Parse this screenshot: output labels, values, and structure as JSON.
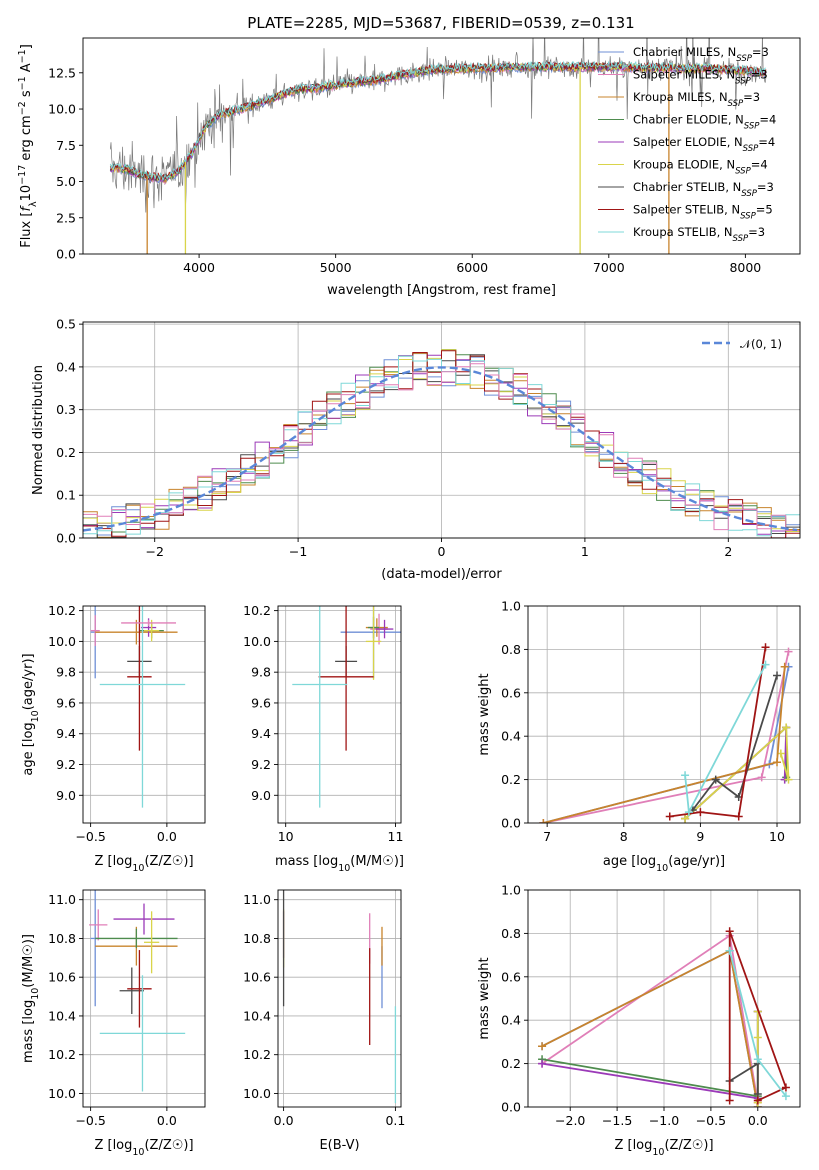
{
  "title": "PLATE=2285, MJD=53687, FIBERID=0539, z=0.131",
  "colors": [
    "#6f8fd6",
    "#c8842d",
    "#4e8c4e",
    "#9b3ab8",
    "#d9d44a",
    "#4a4a4a",
    "#a01515",
    "#7fd8d8",
    "#e07fb8"
  ],
  "chart_data": [
    {
      "id": "spectrum",
      "type": "line",
      "xlabel": "wavelength [Angstrom, rest frame]",
      "ylabel": "Flux [fλ10⁻¹⁷ erg cm⁻² s⁻¹ A⁻¹]",
      "xlim": [
        3150,
        8400
      ],
      "ylim": [
        0,
        14.9
      ],
      "xticks": [
        "4000",
        "5000",
        "6000",
        "7000",
        "8000"
      ],
      "yticks": [
        "0.0",
        "2.5",
        "5.0",
        "7.5",
        "10.0",
        "12.5"
      ],
      "grid": false,
      "legend_position": "top-right",
      "series": [
        {
          "name": "Chabrier MILES, N_SSP=3",
          "color": "#6f8fd6"
        },
        {
          "name": "Salpeter MILES, N_SSP=3",
          "color": "#e07fb8"
        },
        {
          "name": "Kroupa MILES, N_SSP=3",
          "color": "#c8842d"
        },
        {
          "name": "Chabrier ELODIE, N_SSP=4",
          "color": "#4e8c4e"
        },
        {
          "name": "Salpeter ELODIE, N_SSP=4",
          "color": "#9b3ab8"
        },
        {
          "name": "Kroupa ELODIE, N_SSP=4",
          "color": "#d9d44a"
        },
        {
          "name": "Chabrier STELIB, N_SSP=3",
          "color": "#4a4a4a"
        },
        {
          "name": "Salpeter STELIB, N_SSP=5",
          "color": "#a01515"
        },
        {
          "name": "Kroupa STELIB, N_SSP=3",
          "color": "#7fd8d8"
        }
      ],
      "legend_labels": [
        {
          "pre": "Chabrier MILES, N",
          "sub": "SSP",
          "post": "=3"
        },
        {
          "pre": "Salpeter MILES, N",
          "sub": "SSP",
          "post": "=3"
        },
        {
          "pre": "Kroupa MILES, N",
          "sub": "SSP",
          "post": "=3"
        },
        {
          "pre": "Chabrier ELODIE, N",
          "sub": "SSP",
          "post": "=4"
        },
        {
          "pre": "Salpeter ELODIE, N",
          "sub": "SSP",
          "post": "=4"
        },
        {
          "pre": "Kroupa ELODIE, N",
          "sub": "SSP",
          "post": "=4"
        },
        {
          "pre": "Chabrier STELIB, N",
          "sub": "SSP",
          "post": "=3"
        },
        {
          "pre": "Salpeter STELIB, N",
          "sub": "SSP",
          "post": "=5"
        },
        {
          "pre": "Kroupa STELIB, N",
          "sub": "SSP",
          "post": "=3"
        }
      ],
      "model_continuum": {
        "x": [
          3350,
          3450,
          3550,
          3650,
          3750,
          3850,
          3950,
          4050,
          4150,
          4300,
          4500,
          4700,
          4900,
          5100,
          5300,
          5500,
          5700,
          5900,
          6100,
          6300,
          6500,
          6700,
          6900,
          7100,
          7300,
          7500,
          7700,
          7900,
          8150
        ],
        "y": [
          5.9,
          5.9,
          5.5,
          5.3,
          5.2,
          5.7,
          7.0,
          8.8,
          9.6,
          10.0,
          10.6,
          11.3,
          11.5,
          11.8,
          12.0,
          12.4,
          12.7,
          12.8,
          12.8,
          12.9,
          12.9,
          12.9,
          12.9,
          12.9,
          12.85,
          12.8,
          12.8,
          12.7,
          12.5
        ]
      },
      "dropouts": [
        {
          "x": 3620,
          "color": "#c8842d"
        },
        {
          "x": 3900,
          "color": "#d9d44a"
        },
        {
          "x": 6790,
          "color": "#d9d44a"
        },
        {
          "x": 7440,
          "color": "#c8842d"
        }
      ]
    },
    {
      "id": "residuals",
      "type": "histogram",
      "xlabel": "(data-model)/error",
      "ylabel": "Normed distribution",
      "xlim": [
        -2.5,
        2.5
      ],
      "ylim": [
        0,
        0.505
      ],
      "xticks": [
        "−2",
        "−1",
        "0",
        "1",
        "2"
      ],
      "yticks": [
        "0.0",
        "0.1",
        "0.2",
        "0.3",
        "0.4",
        "0.5"
      ],
      "grid": true,
      "legend_position": "top-right",
      "legend": "𝒩(0, 1)",
      "normal_curve_color": "#5a87d8",
      "bin_width": 0.1
    },
    {
      "id": "age-vs-Z",
      "type": "errorbar",
      "xlabel": "Z [log10(Z/Z☉)]",
      "ylabel": "age  [log10(age/yr)]",
      "xlim": [
        -0.55,
        0.25
      ],
      "ylim": [
        8.82,
        10.23
      ],
      "xticks": [
        "−0.5",
        "0.0"
      ],
      "yticks": [
        "9.0",
        "9.2",
        "9.4",
        "9.6",
        "9.8",
        "10.0",
        "10.2"
      ],
      "grid": true,
      "points": [
        {
          "x": -0.47,
          "y": 10.06,
          "xerr": 0.03,
          "yerr": 0.3,
          "color": "#6f8fd6"
        },
        {
          "x": -0.47,
          "y": 10.07,
          "xerr": 0.03,
          "yerr": 0.1,
          "color": "#e07fb8"
        },
        {
          "x": -0.2,
          "y": 10.06,
          "xerr": 0.27,
          "yerr": 0.08,
          "color": "#c8842d"
        },
        {
          "x": -0.1,
          "y": 10.07,
          "xerr": 0.08,
          "yerr": 0.05,
          "color": "#4e8c4e"
        },
        {
          "x": -0.12,
          "y": 10.09,
          "xerr": 0.05,
          "yerr": 0.06,
          "color": "#9b3ab8"
        },
        {
          "x": -0.1,
          "y": 10.07,
          "xerr": 0.05,
          "yerr": 0.07,
          "color": "#d9d44a"
        },
        {
          "x": -0.18,
          "y": 9.87,
          "xerr": 0.08,
          "yerr": 0.1,
          "color": "#4a4a4a"
        },
        {
          "x": -0.18,
          "y": 9.77,
          "xerr": 0.08,
          "yerr": 0.48,
          "color": "#a01515"
        },
        {
          "x": -0.16,
          "y": 9.72,
          "xerr": 0.28,
          "yerr": 0.8,
          "color": "#7fd8d8"
        },
        {
          "x": -0.12,
          "y": 10.12,
          "xerr": 0.18,
          "yerr": 0.02,
          "color": "#e07fb8"
        }
      ]
    },
    {
      "id": "age-vs-mass",
      "type": "errorbar",
      "xlabel": "mass [log10(M/M☉)]",
      "ylabel": "",
      "xlim": [
        9.93,
        11.05
      ],
      "ylim": [
        8.82,
        10.23
      ],
      "xticks": [
        "10",
        "11"
      ],
      "yticks": [
        "9.0",
        "9.2",
        "9.4",
        "9.6",
        "9.8",
        "10.0",
        "10.2"
      ],
      "grid": true,
      "points": [
        {
          "x": 10.8,
          "y": 10.06,
          "xerr": 0.3,
          "yerr": 0.3,
          "color": "#6f8fd6"
        },
        {
          "x": 10.85,
          "y": 10.08,
          "xerr": 0.08,
          "yerr": 0.1,
          "color": "#e07fb8"
        },
        {
          "x": 10.83,
          "y": 10.09,
          "xerr": 0.1,
          "yerr": 0.06,
          "color": "#c8842d"
        },
        {
          "x": 10.8,
          "y": 10.09,
          "xerr": 0.05,
          "yerr": 0.07,
          "color": "#4e8c4e"
        },
        {
          "x": 10.9,
          "y": 10.08,
          "xerr": 0.08,
          "yerr": 0.06,
          "color": "#9b3ab8"
        },
        {
          "x": 10.8,
          "y": 10.0,
          "xerr": 0.07,
          "yerr": 0.25,
          "color": "#d9d44a"
        },
        {
          "x": 10.55,
          "y": 9.87,
          "xerr": 0.1,
          "yerr": 0.1,
          "color": "#4a4a4a"
        },
        {
          "x": 10.55,
          "y": 9.77,
          "xerr": 0.25,
          "yerr": 0.48,
          "color": "#a01515"
        },
        {
          "x": 10.31,
          "y": 9.72,
          "xerr": 0.25,
          "yerr": 0.8,
          "color": "#7fd8d8"
        }
      ]
    },
    {
      "id": "weight-vs-age",
      "type": "line",
      "xlabel": "age  [log10(age/yr)]",
      "ylabel": "mass weight",
      "xlim": [
        6.75,
        10.3
      ],
      "ylim": [
        0,
        1.0
      ],
      "xticks": [
        "7",
        "8",
        "9",
        "10"
      ],
      "yticks": [
        "0.0",
        "0.2",
        "0.4",
        "0.6",
        "0.8",
        "1.0"
      ],
      "grid": true,
      "series": [
        {
          "color": "#6f8fd6",
          "x": [
            6.95,
            9.9,
            10.15
          ],
          "y": [
            0.0,
            0.27,
            0.72
          ]
        },
        {
          "color": "#e07fb8",
          "x": [
            6.95,
            9.8,
            10.15
          ],
          "y": [
            0.0,
            0.21,
            0.79
          ]
        },
        {
          "color": "#4e8c4e",
          "x": [
            8.8,
            10.12,
            10.12
          ],
          "y": [
            0.02,
            0.44,
            0.21
          ]
        },
        {
          "color": "#9b3ab8",
          "x": [
            8.8,
            10.12,
            10.1
          ],
          "y": [
            0.02,
            0.44,
            0.2
          ]
        },
        {
          "color": "#d9d44a",
          "x": [
            8.8,
            10.12,
            10.15,
            10.05
          ],
          "y": [
            0.02,
            0.44,
            0.2,
            0.32
          ]
        },
        {
          "color": "#c8842d",
          "x": [
            6.95,
            10.0,
            10.1
          ],
          "y": [
            0.0,
            0.28,
            0.72
          ]
        },
        {
          "color": "#4a4a4a",
          "x": [
            8.9,
            9.2,
            9.5,
            10.0
          ],
          "y": [
            0.06,
            0.2,
            0.12,
            0.68
          ]
        },
        {
          "color": "#a01515",
          "x": [
            8.6,
            9.0,
            9.5,
            9.85
          ],
          "y": [
            0.03,
            0.05,
            0.03,
            0.81
          ]
        },
        {
          "color": "#7fd8d8",
          "x": [
            8.8,
            8.85,
            9.85
          ],
          "y": [
            0.22,
            0.05,
            0.73
          ]
        }
      ]
    },
    {
      "id": "mass-vs-Z",
      "type": "errorbar",
      "xlabel": "Z [log10(Z/Z☉)]",
      "ylabel": "mass [log10(M/M☉)]",
      "xlim": [
        -0.55,
        0.25
      ],
      "ylim": [
        9.93,
        11.05
      ],
      "xticks": [
        "−0.5",
        "0.0"
      ],
      "yticks": [
        "10.0",
        "10.2",
        "10.4",
        "10.6",
        "10.8",
        "11.0"
      ],
      "grid": true,
      "points": [
        {
          "x": -0.47,
          "y": 10.8,
          "xerr": 0.03,
          "yerr": 0.35,
          "color": "#6f8fd6"
        },
        {
          "x": -0.45,
          "y": 10.87,
          "xerr": 0.06,
          "yerr": 0.08,
          "color": "#e07fb8"
        },
        {
          "x": -0.2,
          "y": 10.76,
          "xerr": 0.27,
          "yerr": 0.1,
          "color": "#c8842d"
        },
        {
          "x": -0.2,
          "y": 10.8,
          "xerr": 0.27,
          "yerr": 0.05,
          "color": "#4e8c4e"
        },
        {
          "x": -0.15,
          "y": 10.9,
          "xerr": 0.2,
          "yerr": 0.08,
          "color": "#9b3ab8"
        },
        {
          "x": -0.1,
          "y": 10.78,
          "xerr": 0.05,
          "yerr": 0.16,
          "color": "#d9d44a"
        },
        {
          "x": -0.23,
          "y": 10.53,
          "xerr": 0.08,
          "yerr": 0.12,
          "color": "#4a4a4a"
        },
        {
          "x": -0.18,
          "y": 10.54,
          "xerr": 0.08,
          "yerr": 0.2,
          "color": "#a01515"
        },
        {
          "x": -0.16,
          "y": 10.31,
          "xerr": 0.28,
          "yerr": 0.3,
          "color": "#7fd8d8"
        }
      ]
    },
    {
      "id": "mass-vs-EBV",
      "type": "errorbar",
      "xlabel": "E(B-V)",
      "ylabel": "",
      "xlim": [
        -0.005,
        0.105
      ],
      "ylim": [
        9.93,
        11.05
      ],
      "xticks": [
        "0.0",
        "0.1"
      ],
      "yticks": [
        "10.0",
        "10.2",
        "10.4",
        "10.6",
        "10.8",
        "11.0"
      ],
      "grid": true,
      "points": [
        {
          "x": 0.0,
          "y": 10.82,
          "xerr": 0,
          "yerr": 0.12,
          "color": "#9b3ab8"
        },
        {
          "x": 0.0,
          "y": 10.8,
          "xerr": 0,
          "yerr": 0.15,
          "color": "#d9d44a"
        },
        {
          "x": 0.0,
          "y": 10.8,
          "xerr": 0,
          "yerr": 0.35,
          "color": "#4a4a4a"
        },
        {
          "x": 0.077,
          "y": 10.8,
          "xerr": 0,
          "yerr": 0.13,
          "color": "#e07fb8"
        },
        {
          "x": 0.077,
          "y": 10.5,
          "xerr": 0,
          "yerr": 0.25,
          "color": "#a01515"
        },
        {
          "x": 0.088,
          "y": 10.6,
          "xerr": 0,
          "yerr": 0.16,
          "color": "#6f8fd6"
        },
        {
          "x": 0.088,
          "y": 10.76,
          "xerr": 0,
          "yerr": 0.1,
          "color": "#c8842d"
        },
        {
          "x": 0.1,
          "y": 10.2,
          "xerr": 0,
          "yerr": 0.25,
          "color": "#7fd8d8"
        }
      ]
    },
    {
      "id": "weight-vs-Z",
      "type": "line",
      "xlabel": "Z [log10(Z/Z☉)]",
      "ylabel": "mass weight",
      "xlim": [
        -2.45,
        0.45
      ],
      "ylim": [
        0,
        1.0
      ],
      "xticks": [
        "−2.0",
        "−1.5",
        "−1.0",
        "−0.5",
        "0.0"
      ],
      "yticks": [
        "0.0",
        "0.2",
        "0.4",
        "0.6",
        "0.8",
        "1.0"
      ],
      "grid": true,
      "series": [
        {
          "color": "#6f8fd6",
          "x": [
            -2.3,
            -0.3,
            0.0
          ],
          "y": [
            0.28,
            0.72,
            0.0
          ]
        },
        {
          "color": "#e07fb8",
          "x": [
            -2.3,
            -0.3,
            0.0
          ],
          "y": [
            0.2,
            0.79,
            0.02
          ]
        },
        {
          "color": "#c8842d",
          "x": [
            -2.3,
            -0.3,
            0.0
          ],
          "y": [
            0.28,
            0.72,
            0.0
          ]
        },
        {
          "color": "#4e8c4e",
          "x": [
            -2.3,
            0.0,
            0.0
          ],
          "y": [
            0.22,
            0.05,
            0.44
          ]
        },
        {
          "color": "#9b3ab8",
          "x": [
            -2.3,
            0.0,
            0.0
          ],
          "y": [
            0.2,
            0.04,
            0.44
          ]
        },
        {
          "color": "#d9d44a",
          "x": [
            0.0,
            0.0,
            0.0
          ],
          "y": [
            0.02,
            0.44,
            0.32
          ]
        },
        {
          "color": "#4a4a4a",
          "x": [
            -0.3,
            0.0,
            0.0
          ],
          "y": [
            0.12,
            0.2,
            0.06
          ]
        },
        {
          "color": "#a01515",
          "x": [
            -0.3,
            -0.3,
            0.3,
            0.0
          ],
          "y": [
            0.03,
            0.81,
            0.09,
            0.03
          ]
        },
        {
          "color": "#7fd8d8",
          "x": [
            -0.3,
            0.0,
            0.3
          ],
          "y": [
            0.72,
            0.22,
            0.05
          ]
        }
      ]
    }
  ]
}
